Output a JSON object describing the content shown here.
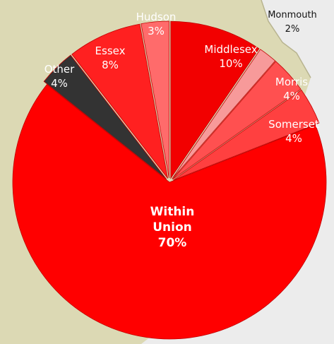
{
  "chart_data": {
    "type": "pie",
    "categories": [
      "Hudson",
      "Middlesex",
      "Monmouth",
      "Morris",
      "Somerset",
      "Within Union",
      "Other",
      "Essex"
    ],
    "values": [
      3,
      10,
      2,
      4,
      4,
      70,
      4,
      8
    ],
    "value_labels": [
      "3%",
      "10%",
      "2%",
      "4%",
      "4%",
      "70%",
      "4%",
      "8%"
    ],
    "colors": [
      "#ff6b6b",
      "#f20000",
      "#f79a9a",
      "#ff5050",
      "#ff4040",
      "#ff0000",
      "#333333",
      "#ff2020"
    ]
  }
}
